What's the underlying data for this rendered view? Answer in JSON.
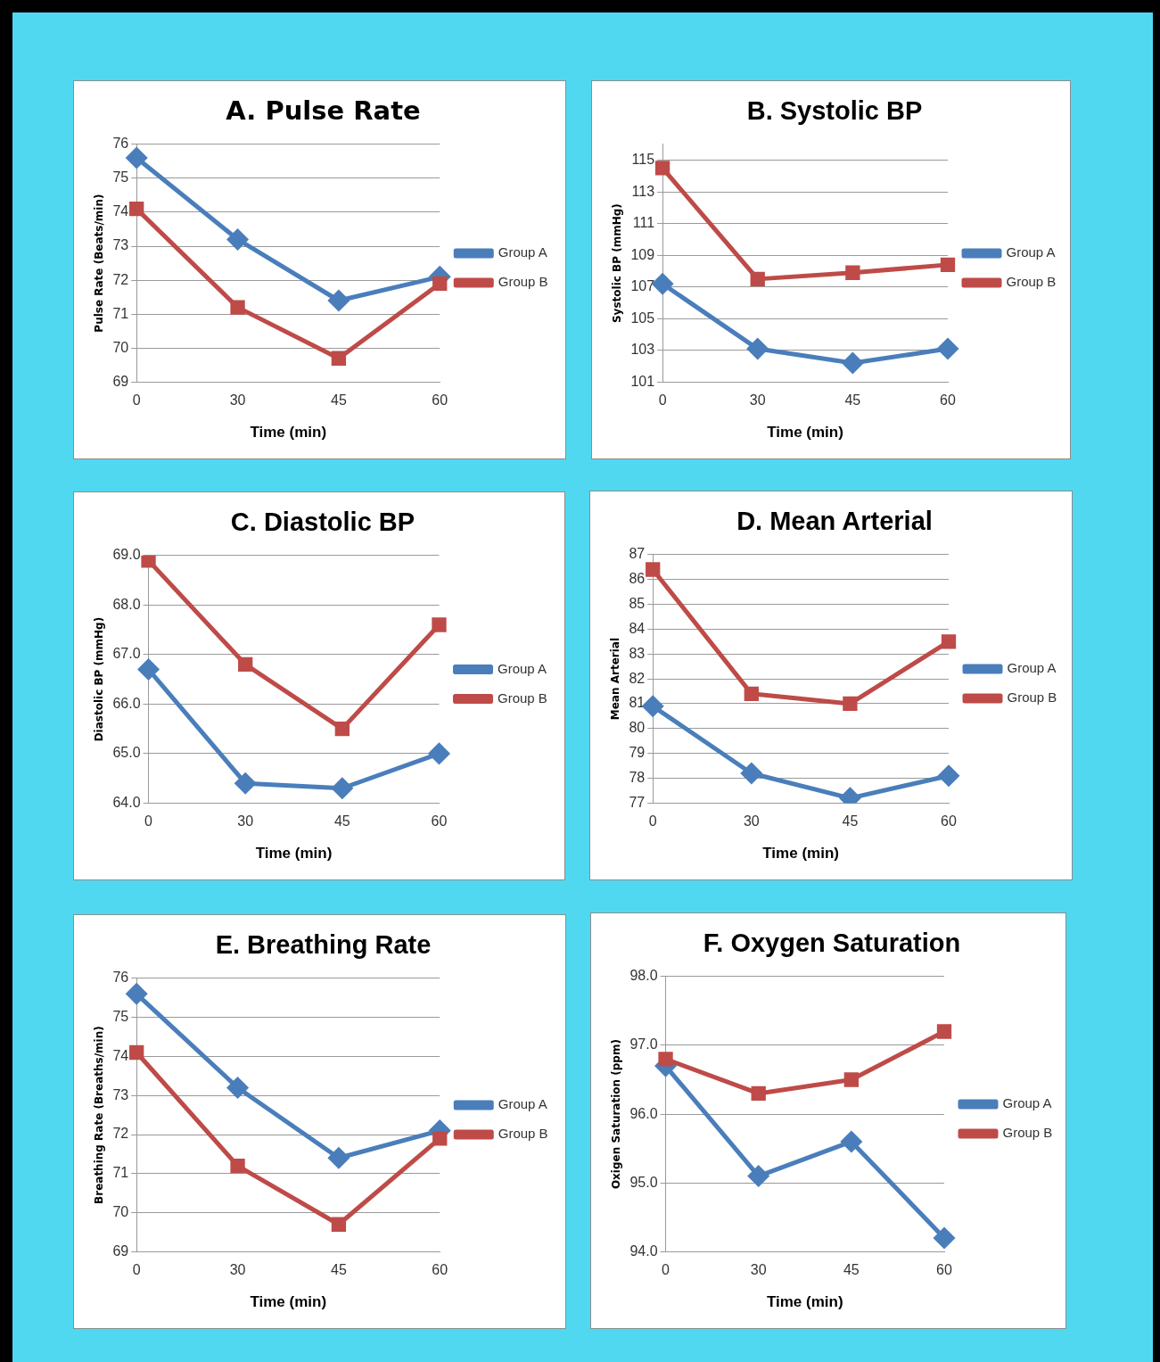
{
  "chart_data": [
    {
      "type": "line",
      "title": "A. Pulse Rate",
      "xlabel": "Time (min)",
      "ylabel": "Pulse Rate (Beats/min)",
      "categories": [
        "0",
        "30",
        "45",
        "60"
      ],
      "ylim": [
        69,
        76
      ],
      "yticks": [
        69,
        70,
        71,
        72,
        73,
        74,
        75,
        76
      ],
      "grid": "y",
      "legend": "right",
      "series": [
        {
          "name": "Group A",
          "color": "#4a7ebb",
          "marker": "diamond",
          "values": [
            75.6,
            73.2,
            71.4,
            72.1
          ]
        },
        {
          "name": "Group B",
          "color": "#be4b48",
          "marker": "square",
          "values": [
            74.1,
            71.2,
            69.7,
            71.9
          ]
        }
      ]
    },
    {
      "type": "line",
      "title": "B. Systolic BP",
      "xlabel": "Time (min)",
      "ylabel": "Systolic BP (mmHg)",
      "categories": [
        "0",
        "30",
        "45",
        "60"
      ],
      "ylim": [
        101,
        116
      ],
      "yticks": [
        101,
        103,
        105,
        107,
        109,
        111,
        113,
        115
      ],
      "grid": "y",
      "legend": "right",
      "series": [
        {
          "name": "Group A",
          "color": "#4a7ebb",
          "marker": "diamond",
          "values": [
            107.2,
            103.1,
            102.2,
            103.1
          ]
        },
        {
          "name": "Group B",
          "color": "#be4b48",
          "marker": "square",
          "values": [
            114.5,
            107.5,
            107.9,
            108.4
          ]
        }
      ]
    },
    {
      "type": "line",
      "title": "C. Diastolic BP",
      "xlabel": "Time (min)",
      "ylabel": "Diastolic BP (mmHg)",
      "categories": [
        "0",
        "30",
        "45",
        "60"
      ],
      "ylim": [
        64,
        69
      ],
      "yticks": [
        {
          "value": 64,
          "label": "64.0"
        },
        {
          "value": 65,
          "label": "65.0"
        },
        {
          "value": 66,
          "label": "66.0"
        },
        {
          "value": 67,
          "label": "67.0"
        },
        {
          "value": 68,
          "label": "68.0"
        },
        {
          "value": 69,
          "label": "69.0"
        }
      ],
      "grid": "y",
      "legend": "right",
      "series": [
        {
          "name": "Group A",
          "color": "#4a7ebb",
          "marker": "diamond",
          "values": [
            66.7,
            64.4,
            64.3,
            65.0
          ]
        },
        {
          "name": "Group B",
          "color": "#be4b48",
          "marker": "square",
          "values": [
            68.9,
            66.8,
            65.5,
            67.6
          ]
        }
      ]
    },
    {
      "type": "line",
      "title": "D. Mean Arterial",
      "xlabel": "Time (min)",
      "ylabel": "Mean Arterial",
      "categories": [
        "0",
        "30",
        "45",
        "60"
      ],
      "ylim": [
        77,
        87
      ],
      "yticks": [
        77,
        78,
        79,
        80,
        81,
        82,
        83,
        84,
        85,
        86,
        87
      ],
      "grid": "y",
      "legend": "right",
      "series": [
        {
          "name": "Group A",
          "color": "#4a7ebb",
          "marker": "diamond",
          "values": [
            80.9,
            78.2,
            77.2,
            78.1
          ]
        },
        {
          "name": "Group B",
          "color": "#be4b48",
          "marker": "square",
          "values": [
            86.4,
            81.4,
            81.0,
            83.5
          ]
        }
      ]
    },
    {
      "type": "line",
      "title": "E. Breathing Rate",
      "xlabel": "Time (min)",
      "ylabel": "Breathing Rate (Breaths/min)",
      "categories": [
        "0",
        "30",
        "45",
        "60"
      ],
      "ylim": [
        69,
        76
      ],
      "yticks": [
        69,
        70,
        71,
        72,
        73,
        74,
        75,
        76
      ],
      "grid": "y",
      "legend": "right",
      "series": [
        {
          "name": "Group A",
          "color": "#4a7ebb",
          "marker": "diamond",
          "values": [
            75.6,
            73.2,
            71.4,
            72.1
          ]
        },
        {
          "name": "Group B",
          "color": "#be4b48",
          "marker": "square",
          "values": [
            74.1,
            71.2,
            69.7,
            71.9
          ]
        }
      ]
    },
    {
      "type": "line",
      "title": "F. Oxygen Saturation",
      "xlabel": "Time (min)",
      "ylabel": "Oxigen Saturation (ppm)",
      "categories": [
        "0",
        "30",
        "45",
        "60"
      ],
      "ylim": [
        94,
        98
      ],
      "yticks": [
        {
          "value": 94,
          "label": "94.0"
        },
        {
          "value": 95,
          "label": "95.0"
        },
        {
          "value": 96,
          "label": "96.0"
        },
        {
          "value": 97,
          "label": "97.0"
        },
        {
          "value": 98,
          "label": "98.0"
        }
      ],
      "grid": "y",
      "legend": "right",
      "series": [
        {
          "name": "Group A",
          "color": "#4a7ebb",
          "marker": "diamond",
          "values": [
            96.7,
            95.1,
            95.6,
            94.2
          ]
        },
        {
          "name": "Group B",
          "color": "#be4b48",
          "marker": "square",
          "values": [
            96.8,
            96.3,
            96.5,
            97.2
          ]
        }
      ]
    }
  ]
}
